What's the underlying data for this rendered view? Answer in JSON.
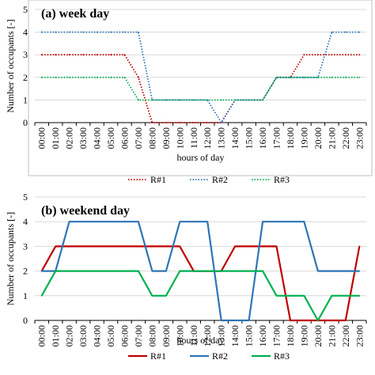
{
  "chart_data": [
    {
      "type": "line",
      "panel_label": "(a) week day",
      "xlabel": "hours of day",
      "ylabel": "Number of occupants [-]",
      "ylim": [
        0,
        5
      ],
      "yticks": [
        "0",
        "1",
        "2",
        "3",
        "4",
        "5"
      ],
      "categories": [
        "00:00",
        "01:00",
        "02:00",
        "03:00",
        "04:00",
        "05:00",
        "06:00",
        "07:00",
        "08:00",
        "09:00",
        "10:00",
        "11:00",
        "12:00",
        "13:00",
        "14:00",
        "15:00",
        "16:00",
        "17:00",
        "18:00",
        "19:00",
        "20:00",
        "21:00",
        "22:00",
        "23:00"
      ],
      "grid": true,
      "legend_position": "bottom",
      "line_style": "dotted",
      "series": [
        {
          "name": "R#1",
          "color": "#c00000",
          "values": [
            3,
            3,
            3,
            3,
            3,
            3,
            3,
            2,
            0,
            0,
            0,
            0,
            0,
            0,
            1,
            1,
            1,
            2,
            2,
            3,
            3,
            3,
            3,
            3
          ]
        },
        {
          "name": "R#2",
          "color": "#2e75b6",
          "values": [
            4,
            4,
            4,
            4,
            4,
            4,
            4,
            4,
            1,
            1,
            1,
            1,
            1,
            0,
            1,
            1,
            1,
            2,
            2,
            2,
            2,
            4,
            4,
            4
          ]
        },
        {
          "name": "R#3",
          "color": "#00b050",
          "values": [
            2,
            2,
            2,
            2,
            2,
            2,
            2,
            1,
            1,
            1,
            1,
            1,
            1,
            1,
            1,
            1,
            1,
            2,
            2,
            2,
            2,
            2,
            2,
            2
          ]
        }
      ]
    },
    {
      "type": "line",
      "panel_label": "(b) weekend day",
      "xlabel": "hours of day",
      "ylabel": "Number of occupants [-]",
      "ylim": [
        0,
        5
      ],
      "yticks": [
        "0",
        "1",
        "2",
        "3",
        "4",
        "5"
      ],
      "categories": [
        "00:00",
        "01:00",
        "02:00",
        "03:00",
        "04:00",
        "05:00",
        "06:00",
        "07:00",
        "08:00",
        "09:00",
        "10:00",
        "11:00",
        "12:00",
        "13:00",
        "14:00",
        "15:00",
        "16:00",
        "17:00",
        "18:00",
        "19:00",
        "20:00",
        "21:00",
        "22:00",
        "23:00"
      ],
      "grid": true,
      "legend_position": "bottom",
      "line_style": "solid",
      "series": [
        {
          "name": "R#1",
          "color": "#c00000",
          "values": [
            2,
            3,
            3,
            3,
            3,
            3,
            3,
            3,
            3,
            3,
            3,
            2,
            2,
            2,
            3,
            3,
            3,
            3,
            0,
            0,
            0,
            0,
            0,
            3
          ]
        },
        {
          "name": "R#2",
          "color": "#2e75b6",
          "values": [
            2,
            2,
            4,
            4,
            4,
            4,
            4,
            4,
            2,
            2,
            4,
            4,
            4,
            0,
            0,
            0,
            4,
            4,
            4,
            4,
            2,
            2,
            2,
            2
          ]
        },
        {
          "name": "R#3",
          "color": "#00b050",
          "values": [
            1,
            2,
            2,
            2,
            2,
            2,
            2,
            2,
            1,
            1,
            2,
            2,
            2,
            2,
            2,
            2,
            2,
            1,
            1,
            1,
            0,
            1,
            1,
            1
          ]
        }
      ]
    }
  ]
}
